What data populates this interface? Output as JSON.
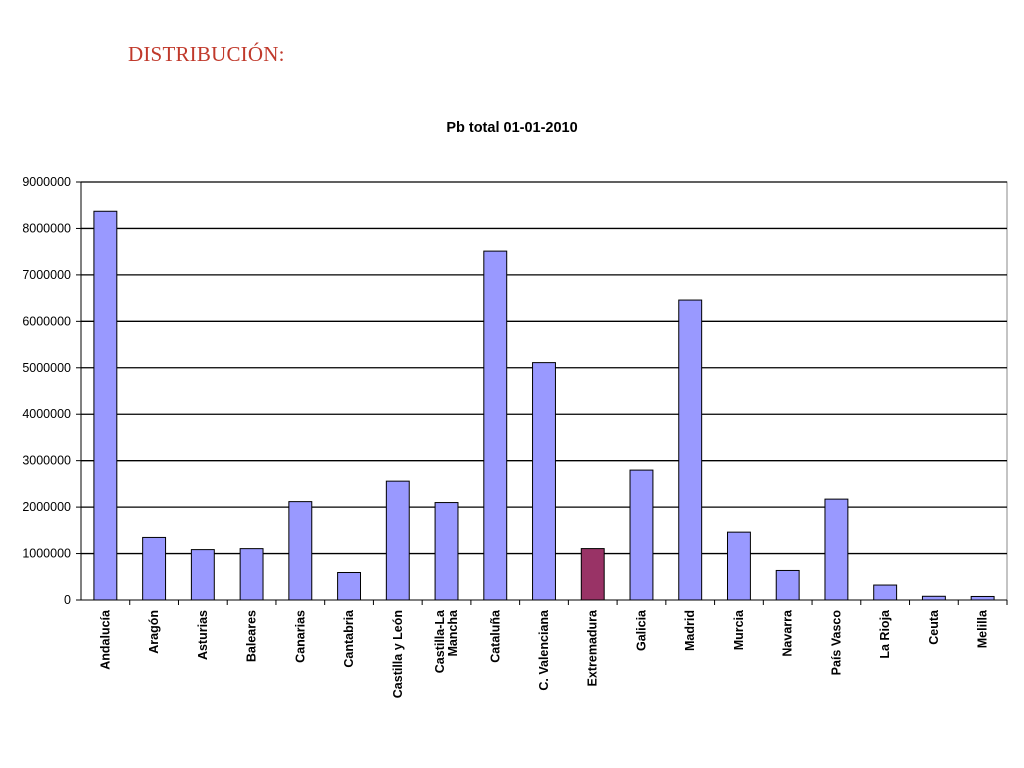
{
  "page": {
    "heading": "DISTRIBUCIÓN:"
  },
  "colors": {
    "heading": "#c0392b",
    "bar": "#9999ff",
    "bar_highlight": "#993366",
    "bar_border": "#000000",
    "gridline": "#000000"
  },
  "chart_data": {
    "type": "bar",
    "title": "Pb total 01-01-2010",
    "xlabel": "",
    "ylabel": "",
    "ylim": [
      0,
      9000000
    ],
    "yticks": [
      "0",
      "1000000",
      "2000000",
      "3000000",
      "4000000",
      "5000000",
      "6000000",
      "7000000",
      "8000000",
      "9000000"
    ],
    "grid": true,
    "legend": "none",
    "highlighted_category": "Extremadura",
    "categories": [
      [
        "Andalucía"
      ],
      [
        "Aragón"
      ],
      [
        "Asturias"
      ],
      [
        "Baleares"
      ],
      [
        "Canarias"
      ],
      [
        "Cantabria"
      ],
      [
        "Castilla y León"
      ],
      [
        "Castilla-La",
        "Mancha"
      ],
      [
        "Cataluña"
      ],
      [
        "C. Valenciana"
      ],
      [
        "Extremadura"
      ],
      [
        "Galicia"
      ],
      [
        "Madrid"
      ],
      [
        "Murcia"
      ],
      [
        "Navarra"
      ],
      [
        "País Vasco"
      ],
      [
        "La Rioja"
      ],
      [
        "Ceuta"
      ],
      [
        "Melilla"
      ]
    ],
    "values": [
      8370000,
      1347000,
      1085000,
      1106000,
      2118000,
      592000,
      2559000,
      2098000,
      7512000,
      5111000,
      1107000,
      2797000,
      6458000,
      1461000,
      636000,
      2172000,
      322000,
      80000,
      76000
    ]
  }
}
